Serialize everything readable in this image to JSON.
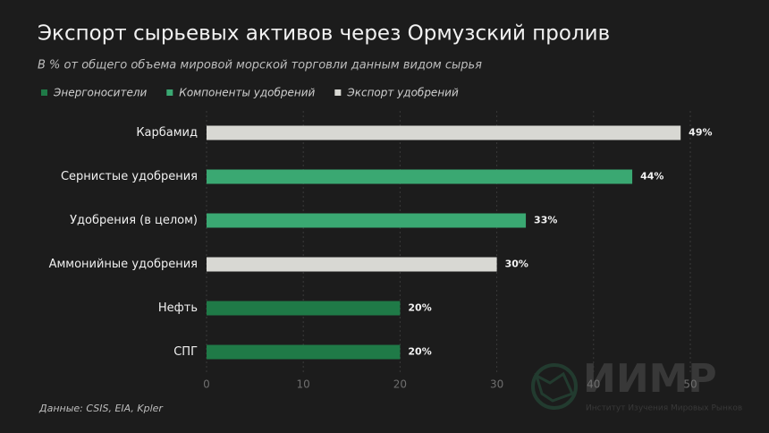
{
  "chart_data": {
    "type": "bar",
    "orientation": "horizontal",
    "title": "Экспорт сырьевых активов через Ормузский пролив",
    "subtitle": "В % от общего объема мировой морской торговли данным видом сырья",
    "categories": [
      "Карбамид",
      "Сернистые удобрения",
      "Удобрения (в целом)",
      "Аммонийные удобрения",
      "Нефть",
      "СПГ"
    ],
    "series": [
      {
        "name": "Энергоносители",
        "color": "#1f7a47",
        "values": [
          null,
          null,
          null,
          null,
          20,
          20
        ],
        "value_labels": [
          null,
          null,
          null,
          null,
          "20%",
          "20%"
        ]
      },
      {
        "name": "Компоненты удобрений",
        "color": "#3aa872",
        "values": [
          null,
          44,
          33,
          null,
          null,
          null
        ],
        "value_labels": [
          null,
          "44%",
          "33%",
          null,
          null,
          null
        ]
      },
      {
        "name": "Экспорт удобрений",
        "color": "#d8d8d3",
        "values": [
          49,
          null,
          null,
          30,
          null,
          null
        ],
        "value_labels": [
          "49%",
          null,
          null,
          "30%",
          null,
          null
        ]
      }
    ],
    "xlim": [
      0,
      50
    ],
    "xticks": [
      0,
      10,
      20,
      30,
      40,
      50
    ],
    "grid": true,
    "source": "Данные: CSIS, EIA, Kpler"
  },
  "watermark": {
    "title": "ИИМР",
    "subtitle": "Институт Изучения Мировых Рынков"
  }
}
